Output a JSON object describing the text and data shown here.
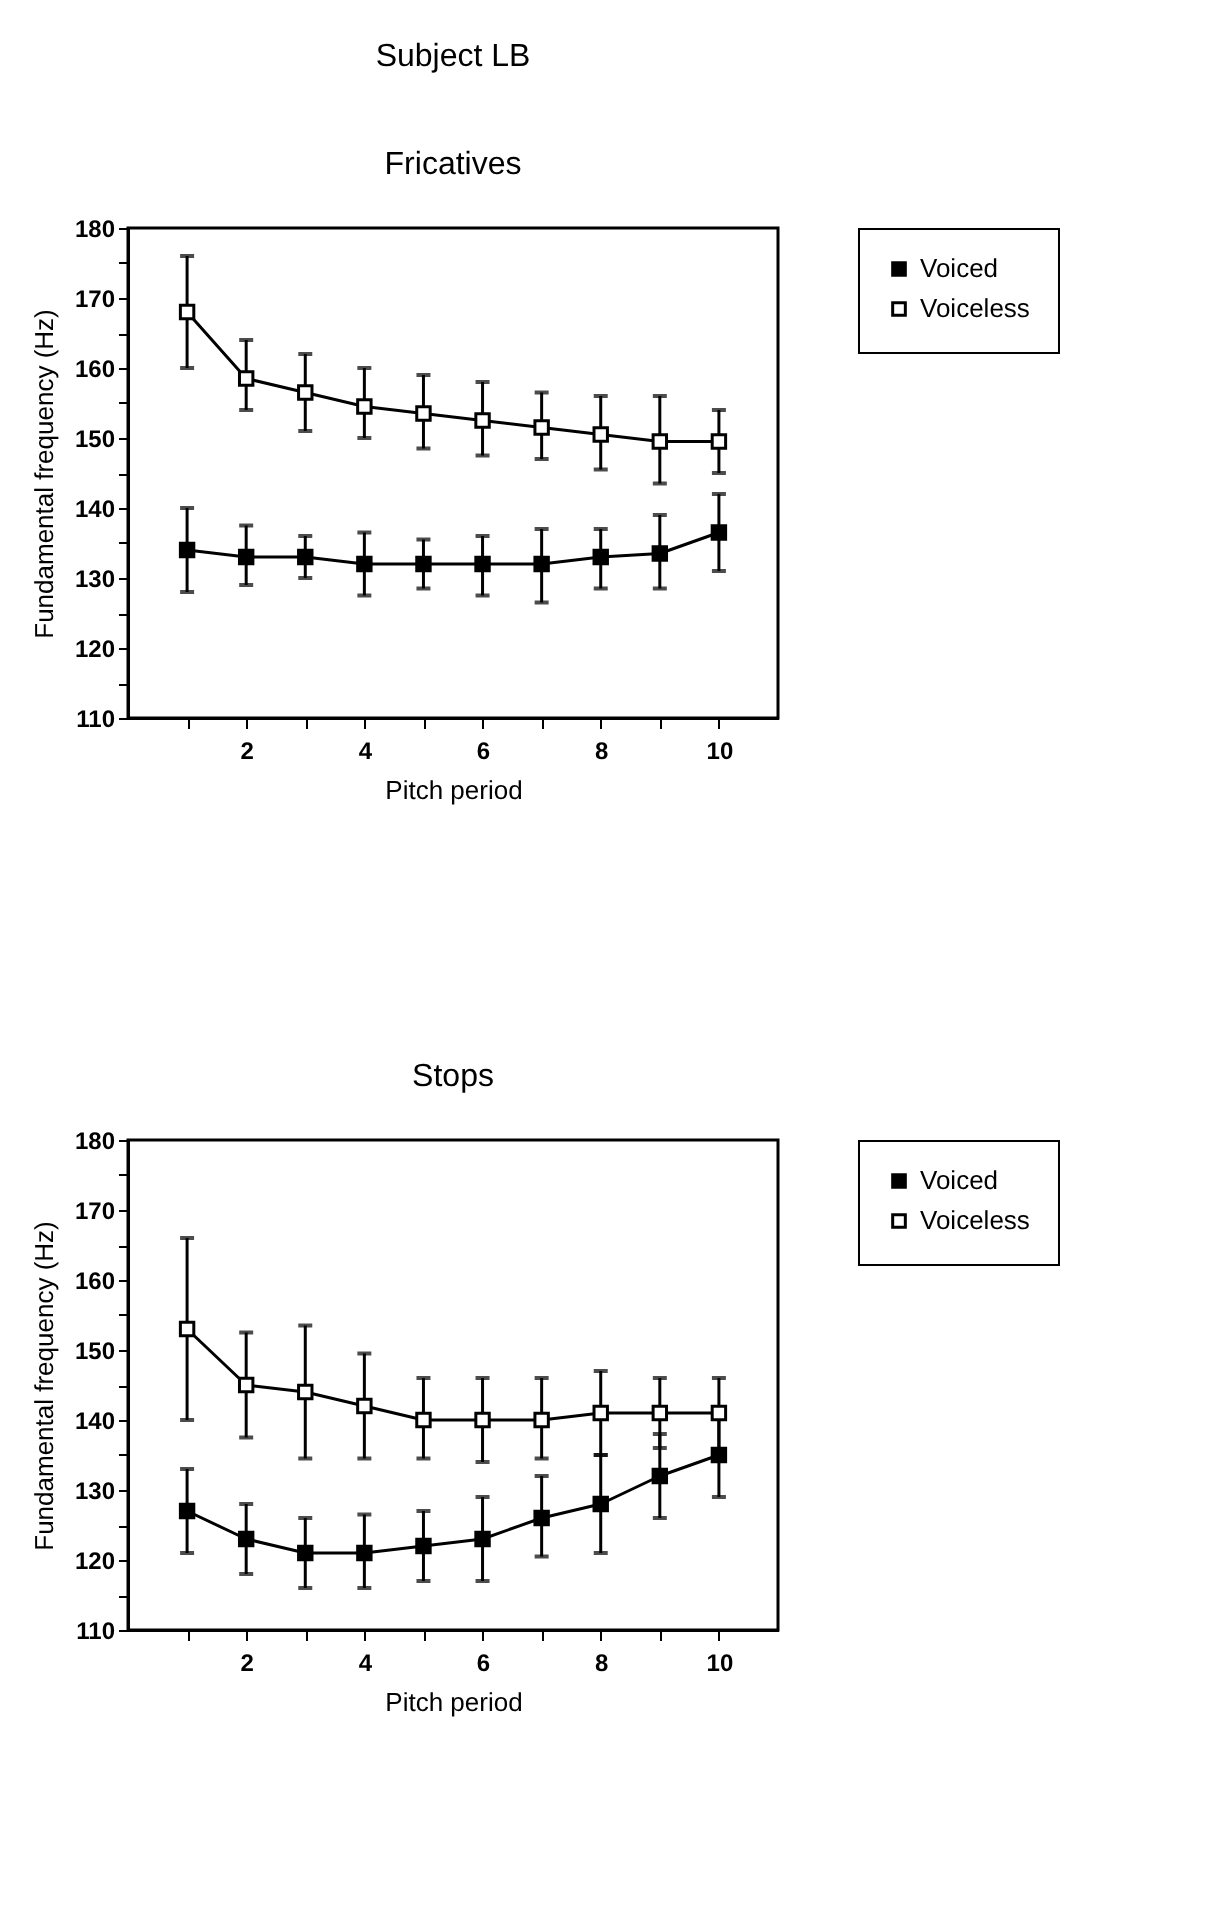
{
  "chart_data": [
    {
      "type": "line",
      "title": "Subject LB",
      "subtitle": "Fricatives",
      "xlabel": "Pitch period",
      "ylabel": "Fundamental frequency (Hz)",
      "x": [
        1,
        2,
        3,
        4,
        5,
        6,
        7,
        8,
        9,
        10
      ],
      "series": [
        {
          "name": "Voiced",
          "color": "#000000",
          "marker": "square",
          "values": [
            134,
            133,
            133,
            132,
            132,
            132,
            132,
            133,
            133.5,
            136.5
          ],
          "errors": [
            [
              128,
              140
            ],
            [
              129,
              137.5
            ],
            [
              130,
              136
            ],
            [
              127.5,
              136.5
            ],
            [
              128.5,
              135.5
            ],
            [
              127.5,
              136
            ],
            [
              126.5,
              137
            ],
            [
              128.5,
              137
            ],
            [
              128.5,
              139
            ],
            [
              131,
              142
            ]
          ]
        },
        {
          "name": "Voiceless",
          "color": "#000000",
          "marker": "square",
          "values": [
            168,
            158.5,
            156.5,
            154.5,
            153.5,
            152.5,
            151.5,
            150.5,
            149.5,
            149.5
          ],
          "errors": [
            [
              160,
              176
            ],
            [
              154,
              164
            ],
            [
              151,
              162
            ],
            [
              150,
              160
            ],
            [
              148.5,
              159
            ],
            [
              147.5,
              158
            ],
            [
              147,
              156.5
            ],
            [
              145.5,
              156
            ],
            [
              143.5,
              156
            ],
            [
              145,
              154
            ]
          ]
        }
      ],
      "xlim": [
        0,
        11
      ],
      "xticks": [
        {
          "value": 1,
          "label": null
        },
        2,
        {
          "value": 3,
          "label": null
        },
        4,
        {
          "value": 5,
          "label": null
        },
        6,
        {
          "value": 7,
          "label": null
        },
        8,
        {
          "value": 9,
          "label": null
        },
        10
      ],
      "ylim": [
        110,
        180
      ],
      "yticks": [
        110,
        {
          "value": 115,
          "label": null
        },
        120,
        {
          "value": 125,
          "label": null
        },
        130,
        {
          "value": 135,
          "label": null
        },
        140,
        {
          "value": 145,
          "label": null
        },
        150,
        {
          "value": 155,
          "label": null
        },
        160,
        {
          "value": 165,
          "label": null
        },
        170,
        {
          "value": 175,
          "label": null
        },
        180
      ],
      "grid": false,
      "legend": "right",
      "line_style": "solid"
    },
    {
      "type": "line",
      "title": "Stops",
      "xlabel": "Pitch period",
      "ylabel": "Fundamental frequency (Hz)",
      "x": [
        1,
        2,
        3,
        4,
        5,
        6,
        7,
        8,
        9,
        10
      ],
      "series": [
        {
          "name": "Voiced",
          "color": "#000000",
          "marker": "square",
          "values": [
            127,
            123,
            121,
            121,
            122,
            123,
            126,
            128,
            132,
            135
          ],
          "errors": [
            [
              121,
              133
            ],
            [
              118,
              128
            ],
            [
              116,
              126
            ],
            [
              116,
              126.5
            ],
            [
              117,
              127
            ],
            [
              117,
              129
            ],
            [
              120.5,
              132
            ],
            [
              121,
              135
            ],
            [
              126,
              138
            ],
            [
              129,
              141
            ]
          ]
        },
        {
          "name": "Voiceless",
          "color": "#000000",
          "marker": "square",
          "values": [
            153,
            145,
            144,
            142,
            140,
            140,
            140,
            141,
            141,
            141
          ],
          "errors": [
            [
              140,
              166
            ],
            [
              137.5,
              152.5
            ],
            [
              134.5,
              153.5
            ],
            [
              134.5,
              149.5
            ],
            [
              134.5,
              146
            ],
            [
              134,
              146
            ],
            [
              134.5,
              146
            ],
            [
              135,
              147
            ],
            [
              136,
              146
            ],
            [
              135.5,
              146
            ]
          ]
        }
      ],
      "xlim": [
        0,
        11
      ],
      "xticks": [
        {
          "value": 1,
          "label": null
        },
        2,
        {
          "value": 3,
          "label": null
        },
        4,
        {
          "value": 5,
          "label": null
        },
        6,
        {
          "value": 7,
          "label": null
        },
        8,
        {
          "value": 9,
          "label": null
        },
        10
      ],
      "ylim": [
        110,
        180
      ],
      "yticks": [
        110,
        {
          "value": 115,
          "label": null
        },
        120,
        {
          "value": 125,
          "label": null
        },
        130,
        {
          "value": 135,
          "label": null
        },
        140,
        {
          "value": 145,
          "label": null
        },
        150,
        {
          "value": 155,
          "label": null
        },
        160,
        {
          "value": 165,
          "label": null
        },
        170,
        {
          "value": 175,
          "label": null
        },
        180
      ],
      "grid": false,
      "legend": "right",
      "line_style": "solid"
    }
  ]
}
